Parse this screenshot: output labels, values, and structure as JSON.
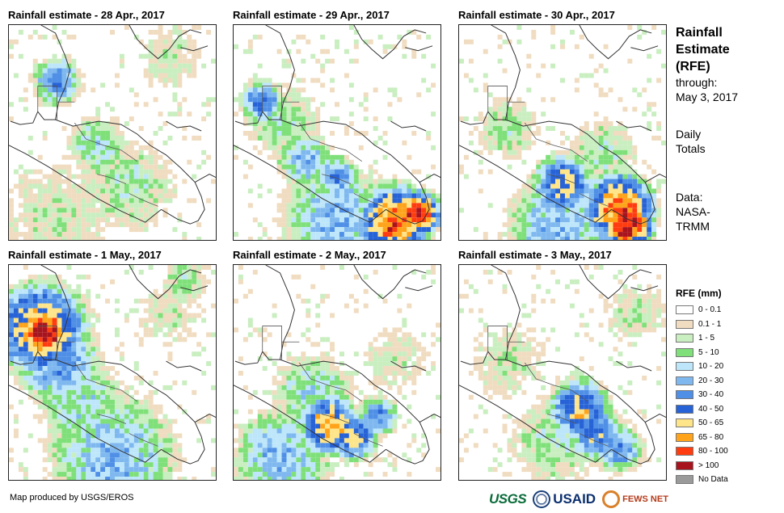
{
  "panels": [
    {
      "title": "Rainfall estimate - 28 Apr., 2017",
      "pattern": "p28"
    },
    {
      "title": "Rainfall estimate - 29 Apr., 2017",
      "pattern": "p29"
    },
    {
      "title": "Rainfall estimate - 30 Apr., 2017",
      "pattern": "p30"
    },
    {
      "title": "Rainfall estimate - 1 May., 2017",
      "pattern": "p01"
    },
    {
      "title": "Rainfall estimate - 2 May., 2017",
      "pattern": "p02"
    },
    {
      "title": "Rainfall estimate - 3 May., 2017",
      "pattern": "p03"
    }
  ],
  "sidebar": {
    "title_lines": [
      "Rainfall",
      "Estimate",
      "(RFE)"
    ],
    "through_label": "through:",
    "through_date": "May 3, 2017",
    "daily_line1": "Daily",
    "daily_line2": "Totals",
    "data_line1": "Data:",
    "data_line2": "NASA-",
    "data_line3": "TRMM"
  },
  "legend": {
    "title": "RFE (mm)",
    "classes": [
      {
        "label": "0 - 0.1",
        "color": "#ffffff"
      },
      {
        "label": "0.1 - 1",
        "color": "#f0dcc0"
      },
      {
        "label": "1 - 5",
        "color": "#c9eec0"
      },
      {
        "label": "5 - 10",
        "color": "#7fe07a"
      },
      {
        "label": "10 - 20",
        "color": "#bde6fa"
      },
      {
        "label": "20 - 30",
        "color": "#7fb8ef"
      },
      {
        "label": "30 - 40",
        "color": "#4f8fe6"
      },
      {
        "label": "40 - 50",
        "color": "#2763d6"
      },
      {
        "label": "50 - 65",
        "color": "#ffe58a"
      },
      {
        "label": "65 - 80",
        "color": "#ffa31a"
      },
      {
        "label": "80 - 100",
        "color": "#ff3c0f"
      },
      {
        "label": "> 100",
        "color": "#a8141e"
      },
      {
        "label": "No Data",
        "color": "#9a9a9a"
      }
    ]
  },
  "credit": "Map produced by USGS/EROS",
  "logos": {
    "usgs": "USGS",
    "usaid": "USAID",
    "fews": "FEWS NET"
  }
}
